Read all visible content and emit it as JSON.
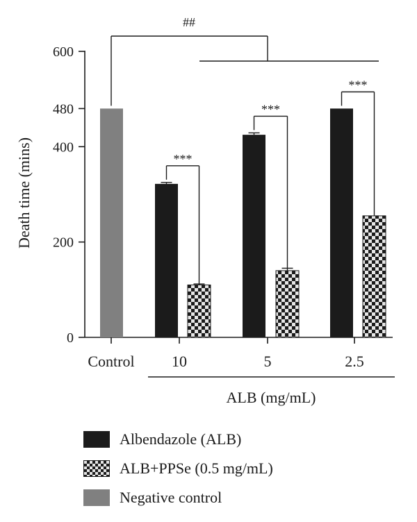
{
  "chart_data": {
    "type": "bar",
    "ylabel": "Death time (mins)",
    "xlabel": "ALB (mg/mL)",
    "ylim": [
      0,
      600
    ],
    "yticks": [
      0,
      200,
      400,
      480,
      600
    ],
    "categories": [
      "Control",
      "10",
      "5",
      "2.5"
    ],
    "series": [
      {
        "name": "Albendazole (ALB)",
        "color": "#1b1b1b",
        "pattern": "solid",
        "values": [
          null,
          322,
          425,
          480
        ],
        "errors": [
          null,
          3,
          4,
          0
        ]
      },
      {
        "name": "ALB+PPSe (0.5 mg/mL)",
        "color": "#1b1b1b",
        "pattern": "checker",
        "values": [
          null,
          110,
          140,
          255
        ],
        "errors": [
          null,
          2,
          5,
          0
        ]
      },
      {
        "name": "Negative control",
        "color": "#808080",
        "pattern": "solid",
        "values": [
          480,
          null,
          null,
          null
        ],
        "errors": [
          0,
          null,
          null,
          null
        ]
      }
    ],
    "annotations": [
      {
        "text": "##",
        "between": "Control vs ALB groups"
      },
      {
        "text": "***",
        "between": "10"
      },
      {
        "text": "***",
        "between": "5"
      },
      {
        "text": "***",
        "between": "2.5"
      }
    ],
    "legend_position": "bottom"
  }
}
